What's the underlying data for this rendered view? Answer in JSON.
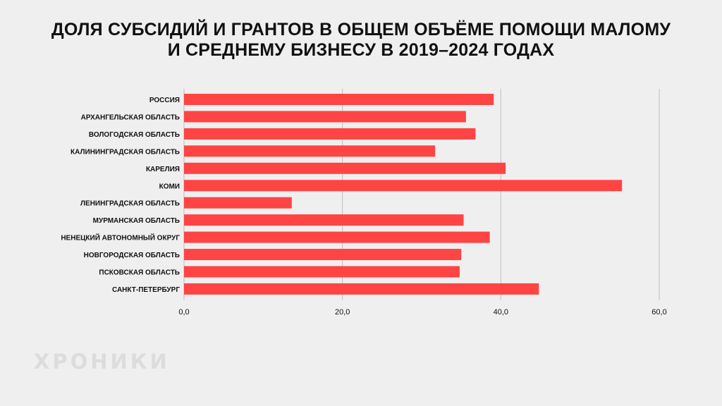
{
  "title": {
    "line1": "ДОЛЯ СУБСИДИЙ И ГРАНТОВ В ОБЩЕМ ОБЪЁМЕ ПОМОЩИ МАЛОМУ",
    "line2": "И СРЕДНЕМУ БИЗНЕСУ В 2019–2024 ГОДАХ"
  },
  "watermark": "ХРОНИКИ",
  "colors": {
    "bar": "#ff4444",
    "grid": "#bdbdbd",
    "background": "#efefef",
    "text": "#111111"
  },
  "chart_data": {
    "type": "bar",
    "orientation": "horizontal",
    "title": "ДОЛЯ СУБСИДИЙ И ГРАНТОВ В ОБЩЕМ ОБЪЁМЕ ПОМОЩИ МАЛОМУ И СРЕДНЕМУ БИЗНЕСУ В 2019–2024 ГОДАХ",
    "xlabel": "",
    "ylabel": "",
    "categories": [
      "РОССИЯ",
      "АРХАНГЕЛЬСКАЯ ОБЛАСТЬ",
      "ВОЛОГОДСКАЯ ОБЛАСТЬ",
      "КАЛИНИНГРАДСКАЯ ОБЛАСТЬ",
      "КАРЕЛИЯ",
      "КОМИ",
      "ЛЕНИНГРАДСКАЯ ОБЛАСТЬ",
      "МУРМАНСКАЯ ОБЛАСТЬ",
      "НЕНЕЦКИЙ АВТОНОМНЫЙ ОКРУГ",
      "НОВГОРОДСКАЯ ОБЛАСТЬ",
      "ПСКОВСКАЯ ОБЛАСТЬ",
      "САНКТ-ПЕТЕРБУРГ"
    ],
    "values": [
      39.1,
      35.6,
      36.8,
      31.7,
      40.6,
      55.3,
      13.6,
      35.3,
      38.6,
      35.0,
      34.8,
      44.8
    ],
    "xlim": [
      0,
      60
    ],
    "xticks": [
      0,
      20,
      40,
      60
    ],
    "xtick_labels": [
      "0,0",
      "20,0",
      "40,0",
      "60,0"
    ],
    "grid": true,
    "legend": "none"
  }
}
